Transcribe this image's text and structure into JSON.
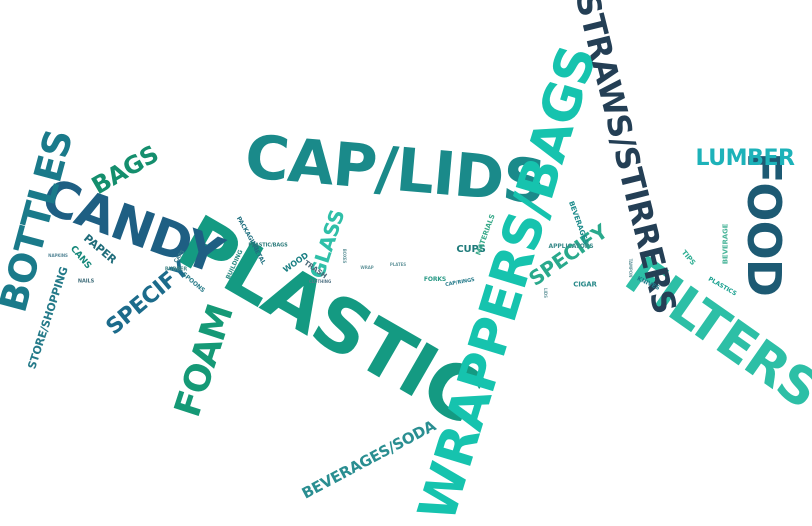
{
  "words": [
    {
      "id": "w1",
      "text": "PLASTIC"
    },
    {
      "id": "w2",
      "text": "CAP/LIDS"
    },
    {
      "id": "w3",
      "text": "FILTERS"
    },
    {
      "id": "w4",
      "text": "WRAPPERS/BAGS"
    },
    {
      "id": "w5",
      "text": "CANDY"
    },
    {
      "id": "w6",
      "text": "FOOD"
    },
    {
      "id": "w7",
      "text": "STRAWS/STIRRERS"
    },
    {
      "id": "w8",
      "text": "BOTTLES"
    },
    {
      "id": "w9",
      "text": "FOAM"
    },
    {
      "id": "w10",
      "text": "LUMBER"
    },
    {
      "id": "w11",
      "text": "BAGS"
    },
    {
      "id": "w12",
      "text": "SPECIFY"
    },
    {
      "id": "w13",
      "text": "SPECIFY"
    },
    {
      "id": "w14",
      "text": "GLASS"
    },
    {
      "id": "w15",
      "text": "BEVERAGES/SODA"
    },
    {
      "id": "w16",
      "text": "STORE/SHOPPING"
    },
    {
      "id": "w17",
      "text": "PAPER"
    },
    {
      "id": "w18",
      "text": "CUPS"
    },
    {
      "id": "w19",
      "text": "CANS"
    },
    {
      "id": "w20",
      "text": "WOOD"
    },
    {
      "id": "w21",
      "text": "TRASH"
    },
    {
      "id": "w22",
      "text": "MATERIALS"
    },
    {
      "id": "w23",
      "text": "BEVERAGES"
    },
    {
      "id": "w24",
      "text": "BEVERAGE"
    },
    {
      "id": "w25",
      "text": "TIPS"
    },
    {
      "id": "w26",
      "text": "PLASTICS"
    },
    {
      "id": "w27",
      "text": "KNIVES"
    },
    {
      "id": "w28",
      "text": "CIGAR"
    },
    {
      "id": "w29",
      "text": "PACKAGING"
    },
    {
      "id": "w30",
      "text": "METAL"
    },
    {
      "id": "w31",
      "text": "BUILDING"
    },
    {
      "id": "w32",
      "text": "NAILS"
    },
    {
      "id": "w33",
      "text": "SPOONS"
    },
    {
      "id": "w34",
      "text": "FORKS"
    },
    {
      "id": "w35",
      "text": "CAP/RINGS"
    },
    {
      "id": "w36",
      "text": "APPLICATORS"
    },
    {
      "id": "w37",
      "text": "PLASTIC/BAGS"
    },
    {
      "id": "w38",
      "text": "CLOTHING"
    },
    {
      "id": "w39",
      "text": "RUBBER"
    },
    {
      "id": "w40",
      "text": "NAPKINS"
    },
    {
      "id": "w41",
      "text": "CAPS"
    },
    {
      "id": "w42",
      "text": "LIDS"
    },
    {
      "id": "w43",
      "text": "BOXES"
    },
    {
      "id": "w44",
      "text": "PLATES"
    },
    {
      "id": "w45",
      "text": "WRAP"
    },
    {
      "id": "w46",
      "text": "TAMPON"
    }
  ],
  "colors": {
    "background": "#ffffff",
    "palette": [
      "#149a82",
      "#1a8a8a",
      "#1e5f83",
      "#243f55",
      "#16c3ae",
      "#2dbfa6",
      "#1db2b9"
    ]
  }
}
